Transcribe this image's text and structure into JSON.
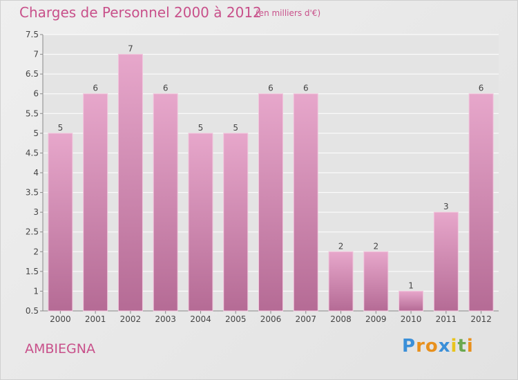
{
  "header": {
    "title": "Charges de Personnel 2000 à 2012",
    "subtitle": "(en milliers d'€)"
  },
  "footer": {
    "commune": "AMBIEGNA",
    "logo_letters": [
      "P",
      "r",
      "o",
      "x",
      "i",
      "t",
      "i"
    ],
    "logo_colors": [
      "#3a8fd8",
      "#e8901c",
      "#e8901c",
      "#3a8fd8",
      "#e8c41c",
      "#6aa84f",
      "#e8901c"
    ]
  },
  "colors": {
    "bar_top": "#e7a7cb",
    "bar_bottom": "#b56b95",
    "accent": "#c8508a",
    "grid": "#ffffff"
  },
  "chart_data": {
    "type": "bar",
    "title": "Charges de Personnel 2000 à 2012",
    "subtitle": "(en milliers d'€)",
    "categories": [
      "2000",
      "2001",
      "2002",
      "2003",
      "2004",
      "2005",
      "2006",
      "2007",
      "2008",
      "2009",
      "2010",
      "2011",
      "2012"
    ],
    "values": [
      5,
      6,
      7,
      6,
      5,
      5,
      6,
      6,
      2,
      2,
      1,
      3,
      6
    ],
    "data_labels": [
      "5",
      "6",
      "7",
      "6",
      "5",
      "5",
      "6",
      "6",
      "2",
      "2",
      "1",
      "3",
      "6"
    ],
    "yticks": [
      "0.5",
      "1",
      "1.5",
      "2",
      "2.5",
      "3",
      "3.5",
      "4",
      "4.5",
      "5",
      "5.5",
      "6",
      "6.5",
      "7",
      "7.5"
    ],
    "ylim": [
      0.5,
      7.5
    ],
    "grid": true,
    "xlabel": "",
    "ylabel": ""
  }
}
